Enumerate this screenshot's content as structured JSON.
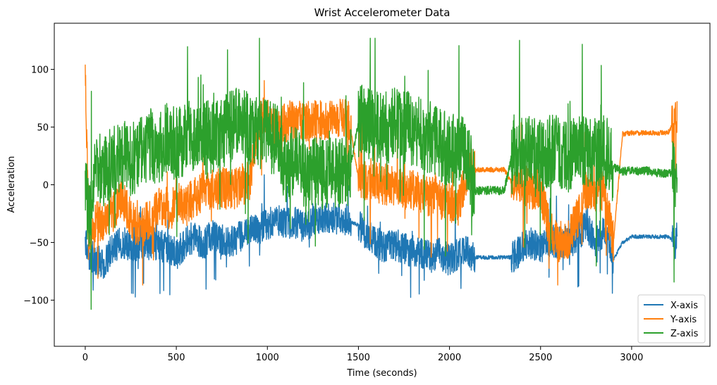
{
  "chart_data": {
    "type": "line",
    "title": "Wrist Accelerometer Data",
    "xlabel": "Time (seconds)",
    "ylabel": "Acceleration",
    "xlim": [
      -170,
      3430
    ],
    "ylim": [
      -140,
      140
    ],
    "xticks": [
      0,
      500,
      1000,
      1500,
      2000,
      2500,
      3000
    ],
    "yticks": [
      -100,
      -50,
      0,
      50,
      100
    ],
    "ytick_labels": [
      "−100",
      "−50",
      "0",
      "50",
      "100"
    ],
    "grid": false,
    "legend_position": "bottom-right",
    "noise_amplitude": [
      14,
      18,
      32
    ],
    "series": [
      {
        "name": "X-axis",
        "color": "#1f77b4",
        "x": [
          0,
          20,
          60,
          100,
          150,
          200,
          250,
          300,
          350,
          400,
          450,
          500,
          550,
          600,
          650,
          700,
          750,
          800,
          850,
          900,
          950,
          1000,
          1050,
          1100,
          1150,
          1200,
          1250,
          1300,
          1350,
          1400,
          1450,
          1500,
          1550,
          1600,
          1650,
          1700,
          1750,
          1800,
          1850,
          1900,
          1950,
          2000,
          2050,
          2100,
          2140,
          2200,
          2250,
          2300,
          2350,
          2400,
          2450,
          2500,
          2550,
          2600,
          2650,
          2700,
          2750,
          2800,
          2850,
          2900,
          2950,
          3000,
          3050,
          3100,
          3150,
          3200,
          3250
        ],
        "y": [
          -45,
          -60,
          -65,
          -70,
          -55,
          -50,
          -52,
          -55,
          -50,
          -52,
          -55,
          -60,
          -50,
          -45,
          -52,
          -42,
          -48,
          -50,
          -45,
          -40,
          -38,
          -35,
          -30,
          -35,
          -32,
          -38,
          -30,
          -28,
          -30,
          -28,
          -32,
          -35,
          -45,
          -50,
          -55,
          -52,
          -55,
          -58,
          -60,
          -62,
          -60,
          -65,
          -60,
          -58,
          -63,
          -63,
          -63,
          -63,
          -63,
          -55,
          -50,
          -55,
          -48,
          -50,
          -48,
          -45,
          -35,
          -50,
          -40,
          -65,
          -50,
          -45,
          -45,
          -45,
          -45,
          -45,
          -52
        ]
      },
      {
        "name": "Y-axis",
        "color": "#ff7f0e",
        "x": [
          0,
          20,
          60,
          100,
          150,
          200,
          250,
          300,
          350,
          400,
          450,
          500,
          550,
          600,
          650,
          700,
          750,
          800,
          850,
          900,
          950,
          1000,
          1050,
          1100,
          1150,
          1200,
          1250,
          1300,
          1350,
          1400,
          1450,
          1500,
          1550,
          1600,
          1650,
          1700,
          1750,
          1800,
          1850,
          1900,
          1950,
          2000,
          2050,
          2100,
          2140,
          2200,
          2250,
          2300,
          2350,
          2400,
          2450,
          2500,
          2550,
          2600,
          2650,
          2700,
          2750,
          2800,
          2850,
          2900,
          2950,
          3000,
          3050,
          3100,
          3150,
          3200,
          3250
        ],
        "y": [
          100,
          -40,
          -30,
          -35,
          -25,
          -10,
          -30,
          -40,
          -30,
          -20,
          -25,
          -15,
          -20,
          -10,
          -5,
          -5,
          -2,
          -5,
          0,
          2,
          55,
          60,
          45,
          55,
          55,
          55,
          55,
          55,
          55,
          57,
          55,
          5,
          3,
          2,
          0,
          -2,
          -5,
          -5,
          -8,
          -10,
          -12,
          -15,
          -18,
          13,
          13,
          13,
          13,
          13,
          0,
          2,
          -5,
          -5,
          -40,
          -50,
          -48,
          -30,
          -5,
          -8,
          -5,
          -50,
          44,
          45,
          45,
          45,
          45,
          45,
          60
        ]
      },
      {
        "name": "Z-axis",
        "color": "#2ca02c",
        "x": [
          0,
          20,
          60,
          100,
          150,
          200,
          250,
          300,
          350,
          400,
          450,
          500,
          550,
          600,
          650,
          700,
          750,
          800,
          850,
          900,
          950,
          1000,
          1050,
          1100,
          1150,
          1200,
          1250,
          1300,
          1350,
          1400,
          1450,
          1500,
          1550,
          1600,
          1650,
          1700,
          1750,
          1800,
          1850,
          1900,
          1950,
          2000,
          2050,
          2100,
          2140,
          2200,
          2250,
          2300,
          2350,
          2400,
          2450,
          2500,
          2550,
          2600,
          2650,
          2700,
          2750,
          2800,
          2850,
          2900,
          2950,
          3000,
          3050,
          3100,
          3150,
          3200,
          3250
        ],
        "y": [
          0,
          -30,
          15,
          10,
          20,
          25,
          20,
          30,
          35,
          30,
          40,
          35,
          40,
          45,
          40,
          42,
          47,
          50,
          55,
          48,
          45,
          42,
          40,
          15,
          20,
          10,
          12,
          10,
          10,
          10,
          10,
          55,
          55,
          50,
          50,
          52,
          50,
          48,
          45,
          40,
          35,
          30,
          28,
          25,
          -5,
          -5,
          -5,
          -5,
          30,
          30,
          28,
          25,
          30,
          28,
          25,
          30,
          30,
          30,
          32,
          15,
          12,
          12,
          12,
          12,
          10,
          10,
          10
        ]
      }
    ]
  }
}
